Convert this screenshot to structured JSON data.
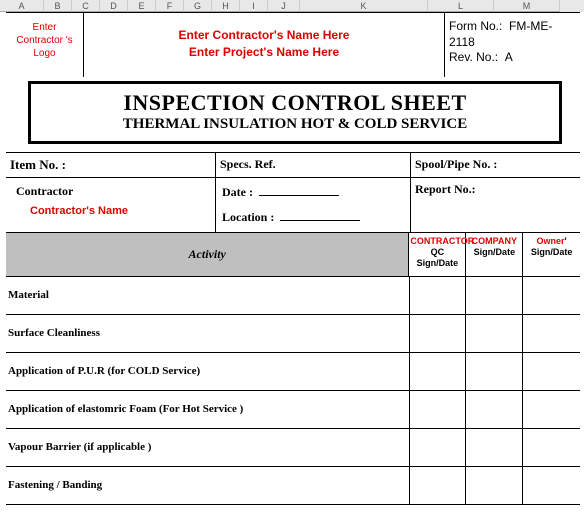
{
  "columns": {
    "labels": [
      "A",
      "B",
      "C",
      "D",
      "E",
      "F",
      "G",
      "H",
      "I",
      "J",
      "K",
      "L",
      "M"
    ],
    "widths": [
      44,
      28,
      28,
      28,
      28,
      28,
      28,
      28,
      28,
      32,
      128,
      66,
      66
    ]
  },
  "logo_text": "Enter Contractor 's Logo",
  "contractor_name_prompt": "Enter Contractor's Name Here",
  "project_name_prompt": "Enter Project's Name Here",
  "form_no_label": "Form No.:",
  "form_no": "FM-ME-2118",
  "rev_label": "Rev. No.:",
  "rev": "A",
  "title1": "INSPECTION CONTROL SHEET",
  "title2": "THERMAL INSULATION HOT & COLD SERVICE",
  "item_no_label": "Item No. :",
  "specs_label": "Specs. Ref.",
  "spool_label": "Spool/Pipe No. :",
  "contractor_label": "Contractor",
  "contractor_value": "Contractor's Name",
  "date_label": "Date  :",
  "location_label": "Location  :",
  "report_label": "Report No.:",
  "activity_header": "Activity",
  "sign_headers": [
    {
      "line1": "CONTRACTOR",
      "line1_color": "#d00000",
      "line2": " QC",
      "line3": "Sign/Date"
    },
    {
      "line1": "COMPANY",
      "line1_color": "#d00000",
      "line2": "",
      "line3": "Sign/Date"
    },
    {
      "line1": "Owner",
      "line1_color": "#d00000",
      "line2": "'",
      "line3": "Sign/Date"
    }
  ],
  "activities": [
    "Material",
    "Surface Cleanliness",
    "Application of P.U.R  (for COLD Service)",
    "Application of elastomric Foam (For Hot Service )",
    "Vapour Barrier (if applicable )",
    "Fastening / Banding"
  ],
  "colors": {
    "red": "#d00000",
    "header_bg": "#bfbfbf",
    "grid": "#000000"
  }
}
